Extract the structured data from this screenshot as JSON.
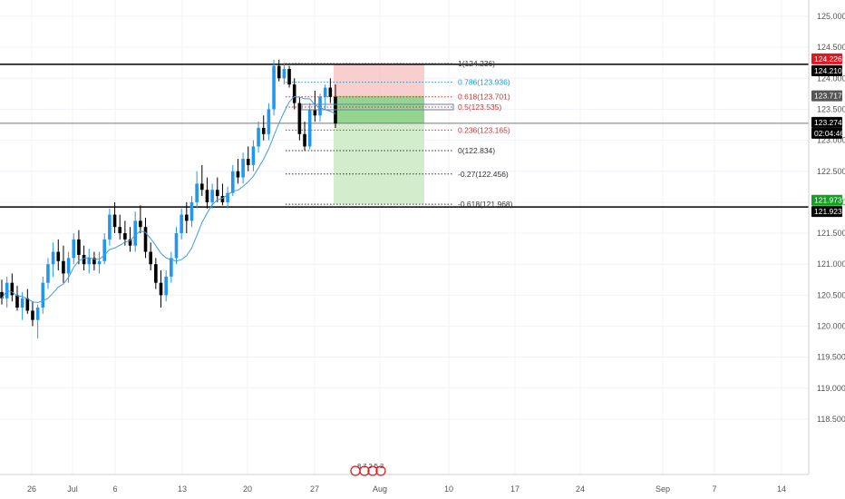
{
  "chart_data": {
    "type": "candlestick",
    "y_axis": {
      "ticks": [
        "125.000",
        "124.500",
        "124.000",
        "123.500",
        "123.000",
        "122.500",
        "122.000",
        "121.500",
        "121.000",
        "120.500",
        "120.000",
        "119.500",
        "119.000",
        "118.500"
      ],
      "range": [
        118.4,
        125.3
      ]
    },
    "x_axis": {
      "ticks": [
        "26",
        "Jul",
        "6",
        "13",
        "20",
        "27",
        "Aug",
        "10",
        "17",
        "24",
        "Sep",
        "7",
        "14"
      ]
    },
    "price_labels": [
      {
        "text": "124.226",
        "color": "#e8141d",
        "value": 124.226
      },
      {
        "text": "124.210",
        "color": "#000000",
        "value": 124.21
      },
      {
        "text": "123.717",
        "color": "#555555",
        "value": 123.717
      },
      {
        "text": "123.274",
        "color": "#000000",
        "value": 123.274
      },
      {
        "text": "02:04:46",
        "color": "#000000",
        "value": 123.274
      },
      {
        "text": "121.973",
        "color": "#14a021",
        "value": 121.973
      },
      {
        "text": "121.923",
        "color": "#000000",
        "value": 121.923
      }
    ],
    "horizontal_lines": [
      {
        "value": 124.226,
        "color": "#000000"
      },
      {
        "value": 123.274,
        "color": "#777777"
      },
      {
        "value": 121.923,
        "color": "#000000"
      }
    ],
    "fibonacci": [
      {
        "label": "1(124.236)",
        "value": 124.236,
        "color": "#333333"
      },
      {
        "label": "0.786(123.936)",
        "value": 123.936,
        "color": "#2196c8"
      },
      {
        "label": "0.618(123.701)",
        "value": 123.701,
        "color": "#d32f2f"
      },
      {
        "label": "0.5(123.535)",
        "value": 123.535,
        "color": "#d32f2f"
      },
      {
        "label": "0.236(123.165)",
        "value": 123.165,
        "color": "#d32f2f"
      },
      {
        "label": "0(122.834)",
        "value": 122.834,
        "color": "#333333"
      },
      {
        "label": "-0.27(122.456)",
        "value": 122.456,
        "color": "#333333"
      },
      {
        "label": "-0.618(121.968)",
        "value": 121.968,
        "color": "#333333"
      }
    ],
    "position": {
      "entry": 123.717,
      "stop": 124.226,
      "target": 121.973,
      "current": 123.274,
      "stop_color": "#f7bdbd",
      "target_color": "#cdebc6",
      "active_color": "#8cd08a"
    },
    "events_label": "8 7 2 5 2",
    "colors": {
      "up": "#2196f3",
      "down": "#000000",
      "ma": "#3f9ce0"
    },
    "candles_approx": [
      [
        120.55,
        120.75,
        120.35,
        120.45
      ],
      [
        120.45,
        120.8,
        120.3,
        120.7
      ],
      [
        120.7,
        120.85,
        120.4,
        120.5
      ],
      [
        120.5,
        120.65,
        120.25,
        120.3
      ],
      [
        120.3,
        120.55,
        120.1,
        120.45
      ],
      [
        120.45,
        120.6,
        120.2,
        120.25
      ],
      [
        120.25,
        120.4,
        120.0,
        120.1
      ],
      [
        120.1,
        120.35,
        119.8,
        120.3
      ],
      [
        120.3,
        120.8,
        120.2,
        120.7
      ],
      [
        120.7,
        121.1,
        120.6,
        121.0
      ],
      [
        121.0,
        121.35,
        120.8,
        121.2
      ],
      [
        121.2,
        121.4,
        120.9,
        121.05
      ],
      [
        121.05,
        121.3,
        120.7,
        120.85
      ],
      [
        120.85,
        121.2,
        120.7,
        121.1
      ],
      [
        121.1,
        121.5,
        121.0,
        121.4
      ],
      [
        121.4,
        121.55,
        121.0,
        121.15
      ],
      [
        121.15,
        121.3,
        120.9,
        121.0
      ],
      [
        121.0,
        121.25,
        120.85,
        121.1
      ],
      [
        121.1,
        121.2,
        120.9,
        121.0
      ],
      [
        121.0,
        121.2,
        120.85,
        121.05
      ],
      [
        121.05,
        121.5,
        121.0,
        121.4
      ],
      [
        121.4,
        121.9,
        121.3,
        121.8
      ],
      [
        121.8,
        122.0,
        121.5,
        121.6
      ],
      [
        121.6,
        121.8,
        121.4,
        121.5
      ],
      [
        121.5,
        121.7,
        121.3,
        121.4
      ],
      [
        121.4,
        121.6,
        121.2,
        121.3
      ],
      [
        121.3,
        121.85,
        121.2,
        121.7
      ],
      [
        121.7,
        121.95,
        121.5,
        121.6
      ],
      [
        121.6,
        121.75,
        121.1,
        121.2
      ],
      [
        121.2,
        121.35,
        120.9,
        121.0
      ],
      [
        121.0,
        121.1,
        120.6,
        120.7
      ],
      [
        120.7,
        120.9,
        120.3,
        120.5
      ],
      [
        120.5,
        120.9,
        120.4,
        120.8
      ],
      [
        120.8,
        121.2,
        120.7,
        121.1
      ],
      [
        121.1,
        121.6,
        121.0,
        121.5
      ],
      [
        121.5,
        121.9,
        121.4,
        121.8
      ],
      [
        121.8,
        122.0,
        121.5,
        121.7
      ],
      [
        121.7,
        122.1,
        121.6,
        122.0
      ],
      [
        122.0,
        122.5,
        121.9,
        122.3
      ],
      [
        122.3,
        122.6,
        122.1,
        122.2
      ],
      [
        122.2,
        122.4,
        121.9,
        122.0
      ],
      [
        122.0,
        122.3,
        121.9,
        122.2
      ],
      [
        122.2,
        122.4,
        122.0,
        122.1
      ],
      [
        122.1,
        122.3,
        121.95,
        122.0
      ],
      [
        122.0,
        122.25,
        121.9,
        122.15
      ],
      [
        122.15,
        122.6,
        122.1,
        122.5
      ],
      [
        122.5,
        122.7,
        122.3,
        122.4
      ],
      [
        122.4,
        122.8,
        122.3,
        122.7
      ],
      [
        122.7,
        122.9,
        122.5,
        122.6
      ],
      [
        122.6,
        123.0,
        122.5,
        122.9
      ],
      [
        122.9,
        123.3,
        122.8,
        123.2
      ],
      [
        123.2,
        123.4,
        123.0,
        123.1
      ],
      [
        123.1,
        123.6,
        123.0,
        123.5
      ],
      [
        123.5,
        124.3,
        123.4,
        124.2
      ],
      [
        124.2,
        124.3,
        123.95,
        124.0
      ],
      [
        124.0,
        124.25,
        123.9,
        124.15
      ],
      [
        124.15,
        124.2,
        123.85,
        123.9
      ],
      [
        123.9,
        124.0,
        123.5,
        123.6
      ],
      [
        123.6,
        123.7,
        123.0,
        123.1
      ],
      [
        123.1,
        123.3,
        122.83,
        122.9
      ],
      [
        122.9,
        123.6,
        122.85,
        123.5
      ],
      [
        123.5,
        123.8,
        123.3,
        123.4
      ],
      [
        123.4,
        123.75,
        123.3,
        123.7
      ],
      [
        123.7,
        123.9,
        123.5,
        123.85
      ],
      [
        123.85,
        124.0,
        123.6,
        123.7
      ],
      [
        123.7,
        123.9,
        123.2,
        123.27
      ]
    ]
  }
}
